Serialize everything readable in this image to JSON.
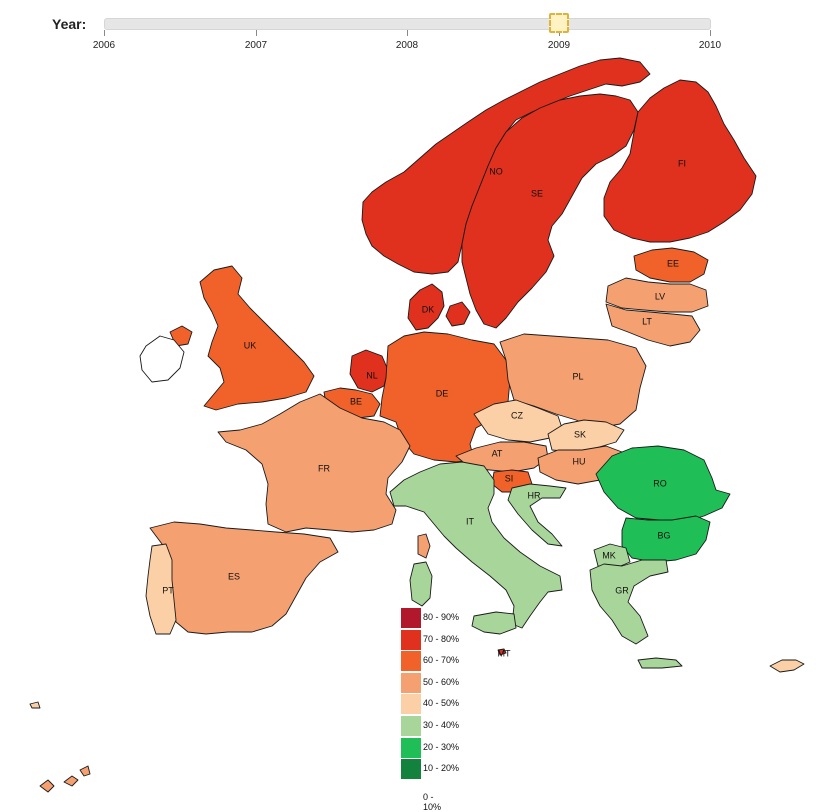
{
  "slider": {
    "label": "Year:",
    "ticks": [
      "2006",
      "2007",
      "2008",
      "2009",
      "2010"
    ],
    "selected": "2009"
  },
  "legend": {
    "items": [
      {
        "label": "80 - 90%",
        "color": "#b2182b"
      },
      {
        "label": "70 - 80%",
        "color": "#e0301e"
      },
      {
        "label": "60 - 70%",
        "color": "#f0622a"
      },
      {
        "label": "50 - 60%",
        "color": "#f4a070"
      },
      {
        "label": "40 - 50%",
        "color": "#fbd0a6"
      },
      {
        "label": "30 - 40%",
        "color": "#a8d69a"
      },
      {
        "label": "20 - 30%",
        "color": "#1fbe57"
      },
      {
        "label": "10 - 20%",
        "color": "#13823c"
      }
    ],
    "last_label": "0 - 10%"
  },
  "countries": [
    {
      "code": "NO",
      "band": "70 - 80%",
      "color": "#e0301e"
    },
    {
      "code": "SE",
      "band": "70 - 80%",
      "color": "#e0301e"
    },
    {
      "code": "FI",
      "band": "70 - 80%",
      "color": "#e0301e"
    },
    {
      "code": "EE",
      "band": "60 - 70%",
      "color": "#f0622a"
    },
    {
      "code": "LV",
      "band": "50 - 60%",
      "color": "#f4a070"
    },
    {
      "code": "LT",
      "band": "50 - 60%",
      "color": "#f4a070"
    },
    {
      "code": "DK",
      "band": "70 - 80%",
      "color": "#e0301e"
    },
    {
      "code": "UK",
      "band": "60 - 70%",
      "color": "#f0622a"
    },
    {
      "code": "NL",
      "band": "70 - 80%",
      "color": "#e0301e"
    },
    {
      "code": "BE",
      "band": "60 - 70%",
      "color": "#f0622a"
    },
    {
      "code": "DE",
      "band": "60 - 70%",
      "color": "#f0622a"
    },
    {
      "code": "PL",
      "band": "50 - 60%",
      "color": "#f4a070"
    },
    {
      "code": "CZ",
      "band": "40 - 50%",
      "color": "#fbd0a6"
    },
    {
      "code": "SK",
      "band": "40 - 50%",
      "color": "#fbd0a6"
    },
    {
      "code": "AT",
      "band": "50 - 60%",
      "color": "#f4a070"
    },
    {
      "code": "HU",
      "band": "50 - 60%",
      "color": "#f4a070"
    },
    {
      "code": "SI",
      "band": "60 - 70%",
      "color": "#f0622a"
    },
    {
      "code": "HR",
      "band": "30 - 40%",
      "color": "#a8d69a"
    },
    {
      "code": "RO",
      "band": "20 - 30%",
      "color": "#1fbe57"
    },
    {
      "code": "BG",
      "band": "20 - 30%",
      "color": "#1fbe57"
    },
    {
      "code": "MK",
      "band": "30 - 40%",
      "color": "#a8d69a"
    },
    {
      "code": "GR",
      "band": "30 - 40%",
      "color": "#a8d69a"
    },
    {
      "code": "FR",
      "band": "50 - 60%",
      "color": "#f4a070"
    },
    {
      "code": "ES",
      "band": "50 - 60%",
      "color": "#f4a070"
    },
    {
      "code": "PT",
      "band": "40 - 50%",
      "color": "#fbd0a6"
    },
    {
      "code": "IT",
      "band": "30 - 40%",
      "color": "#a8d69a"
    },
    {
      "code": "MT",
      "band": "70 - 80%",
      "color": "#e0301e"
    },
    {
      "code": "CY",
      "band": "40 - 50%",
      "color": "#fbd0a6"
    },
    {
      "code": "IE",
      "band": "",
      "color": "#ffffff"
    }
  ]
}
